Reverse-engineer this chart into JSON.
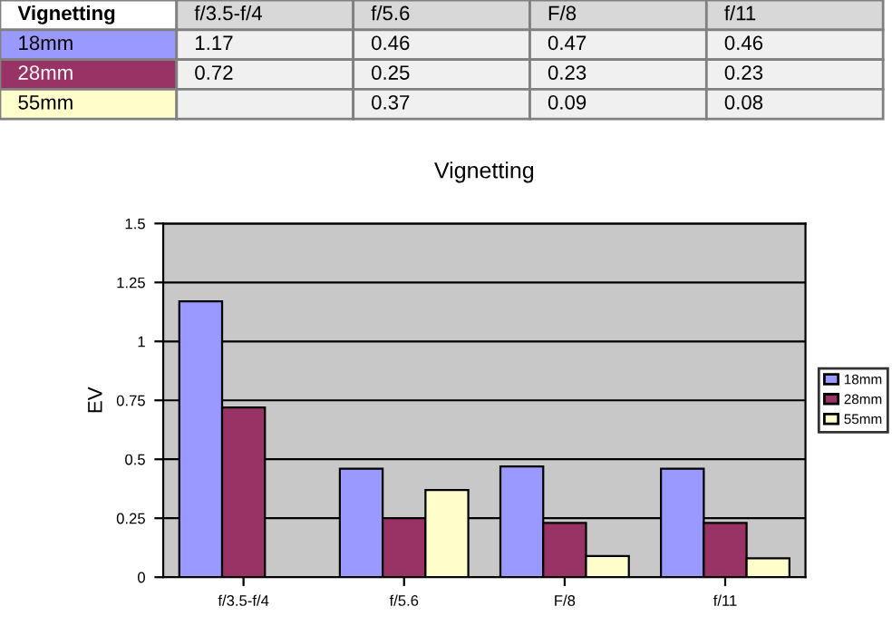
{
  "chart_data": {
    "type": "bar",
    "title": "Vignetting",
    "ylabel": "EV",
    "legend_title": "Vignetting",
    "categories": [
      "f/3.5-f/4",
      "f/5.6",
      "F/8",
      "f/11"
    ],
    "series": [
      {
        "name": "18mm",
        "color": "#9999ff",
        "values": [
          1.17,
          0.46,
          0.47,
          0.46
        ]
      },
      {
        "name": "28mm",
        "color": "#993366",
        "values": [
          0.72,
          0.25,
          0.23,
          0.23
        ]
      },
      {
        "name": "55mm",
        "color": "#ffffcc",
        "values": [
          null,
          0.37,
          0.09,
          0.08
        ]
      }
    ],
    "ylim": [
      0,
      1.5
    ],
    "yticks": [
      0,
      {
        "value": 0.25,
        "label": "0.25"
      },
      {
        "value": 0.5,
        "label": "0.5"
      },
      {
        "value": 0.75,
        "label": "0.75"
      },
      1,
      {
        "value": 1.25,
        "label": "1.25"
      },
      {
        "value": 1.5,
        "label": "1.5"
      }
    ],
    "grid": "y",
    "legend": "right",
    "data_labels": true
  }
}
